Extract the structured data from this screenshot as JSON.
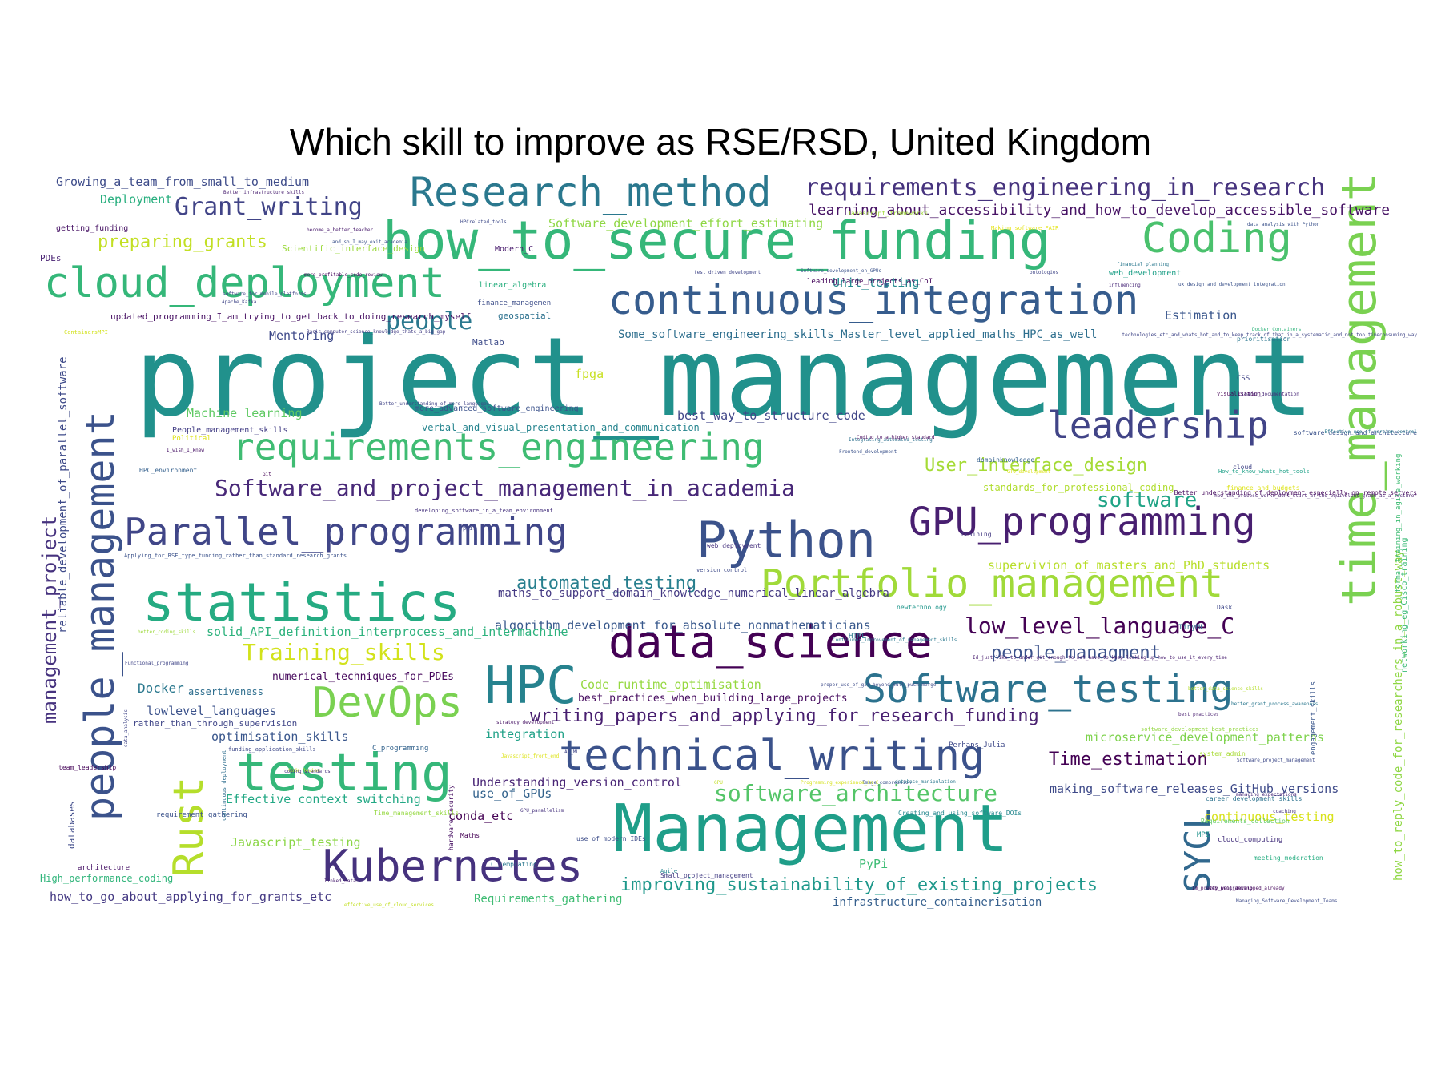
{
  "title": "Which skill to improve as RSE/RSD, United Kingdom",
  "words": [
    {
      "text": "project_management",
      "size": 136,
      "color": "#21918c"
    },
    {
      "text": "Management",
      "size": 82,
      "color": "#1f9e89"
    },
    {
      "text": "how_to_secure_funding",
      "size": 66,
      "color": "#35b779"
    },
    {
      "text": "statistics",
      "size": 66,
      "color": "#25ab82"
    },
    {
      "text": "time_management",
      "size": 60,
      "color": "#7ad151",
      "v": true
    },
    {
      "text": "people_management",
      "size": 50,
      "color": "#3b528b",
      "v": true
    },
    {
      "text": "HPC",
      "size": 64,
      "color": "#26828e"
    },
    {
      "text": "testing",
      "size": 64,
      "color": "#35b779"
    },
    {
      "text": "Python",
      "size": 62,
      "color": "#3b528b"
    },
    {
      "text": "cloud_deployment",
      "size": 52,
      "color": "#35b779"
    },
    {
      "text": "data_science",
      "size": 56,
      "color": "#440154"
    },
    {
      "text": "Kubernetes",
      "size": 54,
      "color": "#46327e"
    },
    {
      "text": "DevOps",
      "size": 52,
      "color": "#7ad151"
    },
    {
      "text": "technical_writing",
      "size": 52,
      "color": "#3b528b"
    },
    {
      "text": "continuous_integration",
      "size": 50,
      "color": "#365c8d"
    },
    {
      "text": "Research_method",
      "size": 50,
      "color": "#2a788e"
    },
    {
      "text": "Coding",
      "size": 52,
      "color": "#4ac16d"
    },
    {
      "text": "Rust",
      "size": 52,
      "color": "#b5de2b",
      "v": true
    },
    {
      "text": "GPU_programming",
      "size": 48,
      "color": "#481f70"
    },
    {
      "text": "Portfolio_management",
      "size": 48,
      "color": "#a0da39"
    },
    {
      "text": "Software_testing",
      "size": 48,
      "color": "#2c728e"
    },
    {
      "text": "Parallel_programming",
      "size": 46,
      "color": "#404688"
    },
    {
      "text": "requirements_engineering",
      "size": 46,
      "color": "#3fbc73"
    },
    {
      "text": "leadership",
      "size": 46,
      "color": "#414487"
    },
    {
      "text": "SYCL",
      "size": 44,
      "color": "#31688e",
      "v": true
    },
    {
      "text": "Grant_writing",
      "size": 30,
      "color": "#414487"
    },
    {
      "text": "requirements_engineering_in_research",
      "size": 30,
      "color": "#46337e"
    },
    {
      "text": "people",
      "size": 30,
      "color": "#2a788e"
    },
    {
      "text": "Software_and_project_management_in_academia",
      "size": 28,
      "color": "#482878"
    },
    {
      "text": "Training_skills",
      "size": 28,
      "color": "#d2e21b"
    },
    {
      "text": "automated_testing",
      "size": 22,
      "color": "#277f8e"
    },
    {
      "text": "low_level_language_C",
      "size": 28,
      "color": "#440154"
    },
    {
      "text": "software",
      "size": 26,
      "color": "#20a486"
    },
    {
      "text": "writing_papers_and_applying_for_research_funding",
      "size": 22,
      "color": "#481f70"
    },
    {
      "text": "software_architecture",
      "size": 28,
      "color": "#54c568"
    },
    {
      "text": "improving_sustainability_of_existing_projects",
      "size": 22,
      "color": "#1f988b"
    },
    {
      "text": "User_interface_design",
      "size": 22,
      "color": "#a5db36"
    },
    {
      "text": "preparing_grants",
      "size": 22,
      "color": "#c2df23"
    },
    {
      "text": "Time_estimation",
      "size": 22,
      "color": "#440154"
    },
    {
      "text": "people_managment",
      "size": 22,
      "color": "#3b528b"
    },
    {
      "text": "management_project",
      "size": 24,
      "color": "#46327e",
      "v": true
    },
    {
      "text": "learning_about_accessibility_and_how_to_develop_accessible_software",
      "size": 18,
      "color": "#471365"
    },
    {
      "text": "Some_software_engineering_skills_Master_level_applied_maths_HPC_as_well",
      "size": 14,
      "color": "#2e6f8e"
    },
    {
      "text": "reliable_development_of_parallel_software",
      "size": 14,
      "color": "#3e4a89",
      "v": true
    },
    {
      "text": "how_to_reply_code_for_researchers_in_a_robust_way",
      "size": 14,
      "color": "#8fd744",
      "v": true
    },
    {
      "text": "networking_eg_Cisco_training",
      "size": 10,
      "color": "#3aba76",
      "v": true
    },
    {
      "text": "formal_training_in_agile_working",
      "size": 9,
      "color": "#3fbc73",
      "v": true
    },
    {
      "text": "Growing_a_team_from_small_to_medium",
      "size": 15,
      "color": "#3e4c8a"
    },
    {
      "text": "Deployment",
      "size": 15,
      "color": "#29af7f"
    },
    {
      "text": "Software_development_effort_estimating",
      "size": 15,
      "color": "#8fd744"
    },
    {
      "text": "Machine_learning",
      "size": 15,
      "color": "#5ec962"
    },
    {
      "text": "verbal_and_visual_presentation_and_communication",
      "size": 12,
      "color": "#25848e"
    },
    {
      "text": "best_way_to_structure_code",
      "size": 15,
      "color": "#404688"
    },
    {
      "text": "maths_to_support_domain_knowledge_numerical_linear_algebra",
      "size": 14,
      "color": "#443983"
    },
    {
      "text": "algorithm_development_for_absolute_nonmathematicians",
      "size": 15,
      "color": "#38588c"
    },
    {
      "text": "solid_API_definition_interprocess_and_intermachine",
      "size": 15,
      "color": "#2db27d"
    },
    {
      "text": "supervivion_of_masters_and_PhD_students",
      "size": 15,
      "color": "#b8de29"
    },
    {
      "text": "Code_runtime_optimisation",
      "size": 15,
      "color": "#95d840"
    },
    {
      "text": "best_practices_when_building_large_projects",
      "size": 13,
      "color": "#470d60"
    },
    {
      "text": "numerical_techniques_for_PDEs",
      "size": 13,
      "color": "#46085c"
    },
    {
      "text": "Docker",
      "size": 16,
      "color": "#2a788e"
    },
    {
      "text": "assertiveness",
      "size": 12,
      "color": "#2e6e8e"
    },
    {
      "text": "lowlevel_languages",
      "size": 15,
      "color": "#3b528b"
    },
    {
      "text": "rather_than_through_supervision",
      "size": 11,
      "color": "#404688"
    },
    {
      "text": "optimisation_skills",
      "size": 15,
      "color": "#39568c"
    },
    {
      "text": "integration",
      "size": 15,
      "color": "#1fa187"
    },
    {
      "text": "microservice_development_patterns",
      "size": 15,
      "color": "#7fd34e"
    },
    {
      "text": "Understanding_version_control",
      "size": 15,
      "color": "#482475"
    },
    {
      "text": "use_of_GPUs",
      "size": 15,
      "color": "#33638d"
    },
    {
      "text": "Effective_context_switching",
      "size": 15,
      "color": "#22a884"
    },
    {
      "text": "conda_etc",
      "size": 15,
      "color": "#440154"
    },
    {
      "text": "Javascript_testing",
      "size": 15,
      "color": "#8bd646"
    },
    {
      "text": "making_software_releases_GitHub_versions",
      "size": 15,
      "color": "#3e4a89"
    },
    {
      "text": "continuous_testing",
      "size": 15,
      "color": "#d8e219"
    },
    {
      "text": "PyPi",
      "size": 15,
      "color": "#3dbc74"
    },
    {
      "text": "High_performance_coding",
      "size": 12,
      "color": "#31b57b"
    },
    {
      "text": "how_to_go_about_applying_for_grants_etc",
      "size": 15,
      "color": "#443983"
    },
    {
      "text": "Requirements_gathering",
      "size": 14,
      "color": "#3fbc73"
    },
    {
      "text": "infrastructure_containerisation",
      "size": 14,
      "color": "#355f8d"
    },
    {
      "text": "standards_for_professional_coding",
      "size": 12,
      "color": "#b0dd2f"
    },
    {
      "text": "updated_programming_I_am_trying_to_get_back_to_doing_research_myself",
      "size": 11,
      "color": "#471063"
    },
    {
      "text": "Mentoring",
      "size": 15,
      "color": "#3e4989"
    },
    {
      "text": "Unit_testing",
      "size": 15,
      "color": "#23898e"
    },
    {
      "text": "web_development",
      "size": 10,
      "color": "#1fa088"
    },
    {
      "text": "Estimation",
      "size": 15,
      "color": "#39568c"
    },
    {
      "text": "Matlab",
      "size": 11,
      "color": "#3e4c8a"
    },
    {
      "text": "fpga",
      "size": 15,
      "color": "#c8e020"
    },
    {
      "text": "geospatial",
      "size": 11,
      "color": "#2c718e"
    },
    {
      "text": "linear_algebra",
      "size": 10,
      "color": "#29af7f"
    },
    {
      "text": "Modern_C",
      "size": 10,
      "color": "#481a6c"
    },
    {
      "text": "Scientific_interface_design",
      "size": 11,
      "color": "#9bd93c"
    },
    {
      "text": "PDEs",
      "size": 11,
      "color": "#482173"
    },
    {
      "text": "getting_funding",
      "size": 10,
      "color": "#471365"
    },
    {
      "text": "more_advanced_software_engineering",
      "size": 10,
      "color": "#3b528b"
    },
    {
      "text": "People_management_skills",
      "size": 10,
      "color": "#433e85"
    },
    {
      "text": "finance_managemen",
      "size": 9,
      "color": "#3d4e8a"
    },
    {
      "text": "leading_large_projects_as_CoI",
      "size": 9,
      "color": "#46085c"
    },
    {
      "text": "Political",
      "size": 9,
      "color": "#dfe318"
    },
    {
      "text": "CSS",
      "size": 9,
      "color": "#414487"
    },
    {
      "text": "HTML",
      "size": 9,
      "color": "#2a788e"
    },
    {
      "text": "Perhaps_Julia",
      "size": 9,
      "color": "#3e4989"
    },
    {
      "text": "C_programming",
      "size": 9,
      "color": "#33638d"
    },
    {
      "text": "team_leadership",
      "size": 8,
      "color": "#450559"
    },
    {
      "text": "requirement_gathering",
      "size": 9,
      "color": "#3b528b"
    },
    {
      "text": "hardware_security",
      "size": 8,
      "color": "#471063",
      "v": true
    },
    {
      "text": "databases",
      "size": 11,
      "color": "#3e4a89",
      "v": true
    },
    {
      "text": "architecture",
      "size": 9,
      "color": "#481467"
    },
    {
      "text": "cloud_computing",
      "size": 9,
      "color": "#46337e"
    },
    {
      "text": "meeting_moderation",
      "size": 8,
      "color": "#26ad81"
    },
    {
      "text": "engagement_skills",
      "size": 9,
      "color": "#39568c",
      "v": true
    },
    {
      "text": "career_development_skills",
      "size": 8,
      "color": "#2c728e"
    },
    {
      "text": "Requirements_collection",
      "size": 8,
      "color": "#5ec962"
    },
    {
      "text": "newtechnology",
      "size": 8,
      "color": "#1f968b"
    },
    {
      "text": "TinyML",
      "size": 9,
      "color": "#2e6e8e"
    },
    {
      "text": "Dask",
      "size": 8,
      "color": "#3f4889"
    },
    {
      "text": "C_Templating",
      "size": 8,
      "color": "#2a788e"
    },
    {
      "text": "Agile",
      "size": 7,
      "color": "#25858e"
    },
    {
      "text": "Visualisation",
      "size": 7,
      "color": "#440154"
    },
    {
      "text": "domainknowledge",
      "size": 8,
      "color": "#34608d"
    },
    {
      "text": "use_of_modern_IDEs",
      "size": 8,
      "color": "#3d4d8a"
    },
    {
      "text": "prioritisation",
      "size": 8,
      "color": "#2a768e"
    },
    {
      "text": "web_deployment",
      "size": 8,
      "color": "#46327e"
    },
    {
      "text": "version_control",
      "size": 7,
      "color": "#3e4a89"
    },
    {
      "text": "training",
      "size": 8,
      "color": "#443a83"
    },
    {
      "text": "Maths",
      "size": 8,
      "color": "#440154"
    },
    {
      "text": "Javascript_frameworks",
      "size": 8,
      "color": "#9fda3a"
    },
    {
      "text": "Making_software_FAIR",
      "size": 7,
      "color": "#e5e419"
    },
    {
      "text": "data_analysis_with_Python",
      "size": 6,
      "color": "#3b528b"
    },
    {
      "text": "Docker_Containers",
      "size": 6,
      "color": "#30b47c"
    },
    {
      "text": "finance_and_budgets",
      "size": 8,
      "color": "#dde318"
    },
    {
      "text": "clearer_documentation",
      "size": 6,
      "color": "#482878"
    },
    {
      "text": "software_design_and_architecture",
      "size": 8,
      "color": "#3b528b"
    },
    {
      "text": "Integrating_automated_testing",
      "size": 6,
      "color": "#2d708e"
    },
    {
      "text": "Coding_to_a_higher_standard",
      "size": 6,
      "color": "#46085c"
    },
    {
      "text": "Frontend_development",
      "size": 6,
      "color": "#3b528b"
    },
    {
      "text": "How_to_know_whats_hot_tools",
      "size": 7,
      "color": "#1fa188"
    },
    {
      "text": "better_coding_skills",
      "size": 6,
      "color": "#9dd93b"
    },
    {
      "text": "Functional_programming",
      "size": 6,
      "color": "#404688"
    },
    {
      "text": "proper_use_of_git_beyond_pull_push_merge",
      "size": 6,
      "color": "#3e4c8a"
    },
    {
      "text": "better_grant_process_awareness",
      "size": 6,
      "color": "#2a778e"
    },
    {
      "text": "best_practices",
      "size": 6,
      "color": "#481d6f"
    },
    {
      "text": "software_development_best_practices",
      "size": 7,
      "color": "#93d741"
    },
    {
      "text": "Software_project_management",
      "size": 6,
      "color": "#3e4a89"
    },
    {
      "text": "managing_expectations",
      "size": 6,
      "color": "#482878"
    },
    {
      "text": "MPI",
      "size": 9,
      "color": "#20928c"
    },
    {
      "text": "system_admin",
      "size": 8,
      "color": "#a8db34"
    },
    {
      "text": "Small_project_management",
      "size": 8,
      "color": "#433d84"
    },
    {
      "text": "Image_compression",
      "size": 6,
      "color": "#3b528b"
    },
    {
      "text": "database_manipulation",
      "size": 6,
      "color": "#2a788e"
    },
    {
      "text": "Creating_and_using_software_DOIs",
      "size": 8,
      "color": "#24878e"
    },
    {
      "text": "Programming_experience_in_C",
      "size": 6,
      "color": "#d5e21a"
    },
    {
      "text": "GPU",
      "size": 6,
      "color": "#c2df23"
    },
    {
      "text": "AI_ML",
      "size": 6,
      "color": "#404688"
    },
    {
      "text": "funding_application_skills",
      "size": 7,
      "color": "#3e4989"
    },
    {
      "text": "continuous_deployment",
      "size": 7,
      "color": "#2e6e8e",
      "v": true
    },
    {
      "text": "Time_management_skills",
      "size": 8,
      "color": "#95d840"
    },
    {
      "text": "Code_Review",
      "size": 6,
      "color": "#c8e020"
    },
    {
      "text": "coding_standards",
      "size": 6,
      "color": "#46327e"
    },
    {
      "text": "Apache_Kafka",
      "size": 6,
      "color": "#404688"
    },
    {
      "text": "HPC_environment",
      "size": 8,
      "color": "#34608d"
    },
    {
      "text": "I_wish_I_knew",
      "size": 6,
      "color": "#481467"
    },
    {
      "text": "Better_understanding_of_deployment_especially_on_remote_servers",
      "size": 8,
      "color": "#46085c"
    },
    {
      "text": "Applying_for_RSE_type_funding_rather_than_standard_research_grants",
      "size": 7,
      "color": "#3b528b"
    },
    {
      "text": "developing_software_in_a_team_environment",
      "size": 7,
      "color": "#46327e"
    },
    {
      "text": "Continuous_improvement_of_management_skills",
      "size": 6,
      "color": "#2a788e"
    },
    {
      "text": "Id_just_like_to_under_git_enough_to_not_have_to_keep_looking_up_how_to_use_it_every_time",
      "size": 6,
      "color": "#481d6f"
    },
    {
      "text": "technologies_etc_and_whats_hot_and_to_keep_track_of_that_in_a_systematic_and_not_too_timeconsuming_way",
      "size": 6,
      "color": "#404688"
    },
    {
      "text": "Basic_computer_science_knowledge_thats_a_big_gap",
      "size": 6,
      "color": "#433e85"
    },
    {
      "text": "software_for_mobile_platforms",
      "size": 6,
      "color": "#404688"
    },
    {
      "text": "HPCrelated_tools",
      "size": 6,
      "color": "#3e4a89"
    },
    {
      "text": "become_a_better_teacher",
      "size": 6,
      "color": "#481a6c"
    },
    {
      "text": "and_so_I_may_exit_academia",
      "size": 6,
      "color": "#3b528b"
    },
    {
      "text": "more_profitable_code_review",
      "size": 6,
      "color": "#46085c"
    },
    {
      "text": "test_driven_development",
      "size": 6,
      "color": "#404688"
    },
    {
      "text": "influencing",
      "size": 6,
      "color": "#482878"
    },
    {
      "text": "financial_planning",
      "size": 6,
      "color": "#2a788e"
    },
    {
      "text": "ontologies",
      "size": 6,
      "color": "#404688"
    },
    {
      "text": "ux_design_and_development_integration",
      "size": 6,
      "color": "#3b528b"
    },
    {
      "text": "ContainersMPI",
      "size": 7,
      "color": "#d2e21b"
    },
    {
      "text": "linked_data",
      "size": 6,
      "color": "#481d6f"
    },
    {
      "text": "effective_use_of_cloud_services",
      "size": 6,
      "color": "#c2df23"
    },
    {
      "text": "Managing_Software_Development_Teams",
      "size": 6,
      "color": "#3e4c8a"
    },
    {
      "text": "Im_pretty_well_developed_already",
      "size": 6,
      "color": "#46085c"
    },
    {
      "text": "Better_understanding_of_more_languages",
      "size": 6,
      "color": "#414487"
    },
    {
      "text": "Better_infrastructure_skills",
      "size": 6,
      "color": "#481f70"
    },
    {
      "text": "Javascript_front_end",
      "size": 6,
      "color": "#dde318"
    },
    {
      "text": "web_programming",
      "size": 6,
      "color": "#481467"
    },
    {
      "text": "better_data_science_skills",
      "size": 6,
      "color": "#b5de2b"
    },
    {
      "text": "GPU_parallelism",
      "size": 6,
      "color": "#46327e"
    },
    {
      "text": "Git",
      "size": 6,
      "color": "#440154"
    },
    {
      "text": "cloud",
      "size": 8,
      "color": "#414487"
    },
    {
      "text": "data_analysis",
      "size": 6,
      "color": "#404688",
      "v": true
    },
    {
      "text": "strategy_development",
      "size": 6,
      "color": "#471365"
    },
    {
      "text": "Software_development_on_GPUs",
      "size": 6,
      "color": "#3b528b"
    },
    {
      "text": "Effective_use_of_version_control",
      "size": 6,
      "color": "#2a788e"
    },
    {
      "text": "how_the_process_works_dont_start_at_the_equivalent_grade_as_a_lecturer",
      "size": 6,
      "color": "#481d6f"
    },
    {
      "text": "GTO_development",
      "size": 6,
      "color": "#dfe318"
    },
    {
      "text": "pair",
      "size": 7,
      "color": "#404688"
    },
    {
      "text": "coaching",
      "size": 6,
      "color": "#46327e"
    }
  ]
}
